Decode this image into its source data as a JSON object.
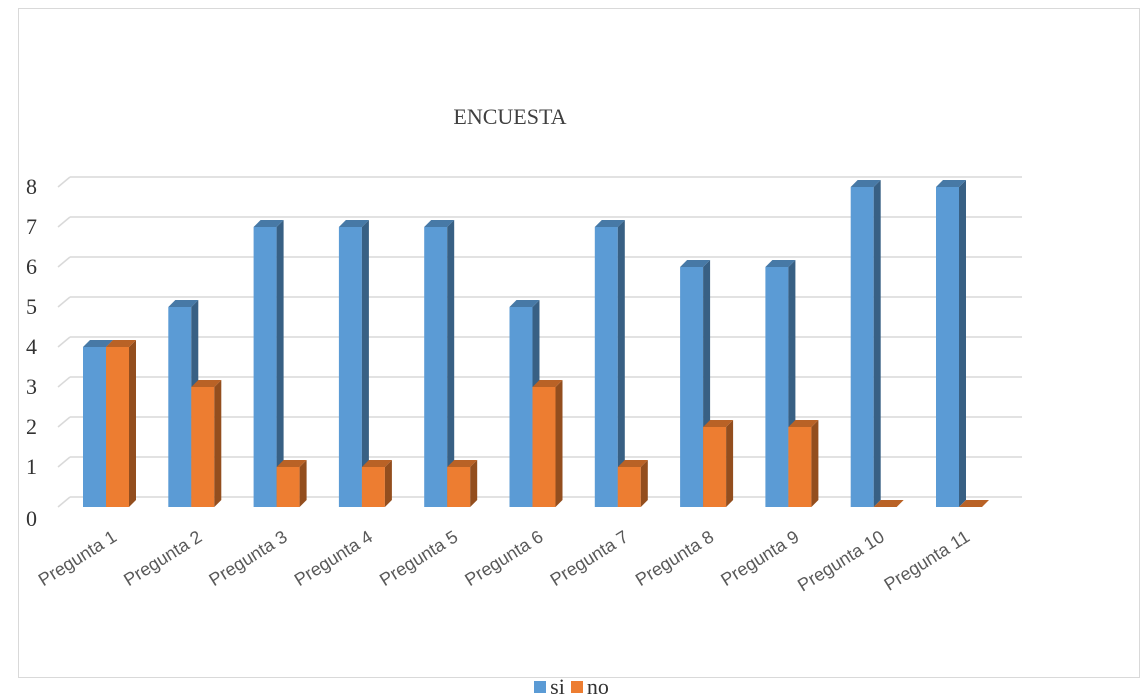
{
  "chart_data": {
    "type": "bar",
    "title": "ENCUESTA",
    "categories": [
      "Pregunta 1",
      "Pregunta 2",
      "Pregunta 3",
      "Pregunta 4",
      "Pregunta 5",
      "Pregunta 6",
      "Pregunta 7",
      "Pregunta 8",
      "Pregunta 9",
      "Pregunta 10",
      "Pregunta 11"
    ],
    "series": [
      {
        "name": "si",
        "values": [
          4,
          5,
          7,
          7,
          7,
          5,
          7,
          6,
          6,
          8,
          8
        ],
        "color": "#5b9bd5"
      },
      {
        "name": "no",
        "values": [
          4,
          3,
          1,
          1,
          1,
          3,
          1,
          2,
          2,
          0,
          0
        ],
        "color": "#ed7d31"
      }
    ],
    "ylim": [
      0,
      8
    ],
    "yticks": [
      "0",
      "1",
      "2",
      "3",
      "4",
      "5",
      "6",
      "7",
      "8"
    ],
    "xlabel": "",
    "ylabel": "",
    "grid": true,
    "legend_position": "bottom",
    "style": "3d-clustered-column"
  }
}
